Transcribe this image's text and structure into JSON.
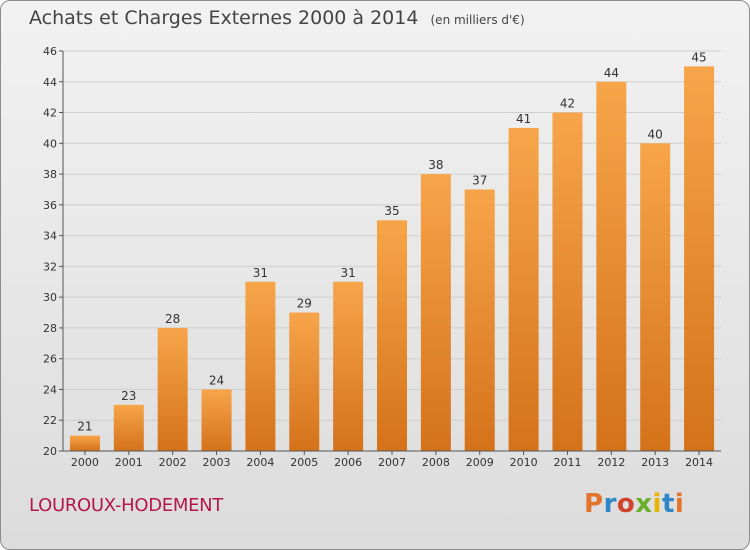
{
  "header": {
    "title": "Achats et Charges Externes 2000 à 2014",
    "subtitle": "(en milliers d'€)"
  },
  "footer": {
    "commune": "LOUROUX-HODEMENT",
    "logo_text": "Proxiti"
  },
  "colors": {
    "bar_light": "#f7a54a",
    "bar_dark": "#d4721a",
    "grid": "#d0d0d0",
    "axis": "#555555",
    "commune": "#b5174d",
    "logo": [
      "#e4732b",
      "#2e85c8",
      "#d1432c",
      "#6aaf2b",
      "#e8b400",
      "#2e85c8",
      "#e4732b"
    ]
  },
  "chart_data": {
    "type": "bar",
    "categories": [
      "2000",
      "2001",
      "2002",
      "2003",
      "2004",
      "2005",
      "2006",
      "2007",
      "2008",
      "2009",
      "2010",
      "2011",
      "2012",
      "2013",
      "2014"
    ],
    "values": [
      21,
      23,
      28,
      24,
      31,
      29,
      31,
      35,
      38,
      37,
      41,
      42,
      44,
      40,
      45
    ],
    "title": "Achats et Charges Externes 2000 à 2014",
    "subtitle": "(en milliers d'€)",
    "xlabel": "",
    "ylabel": "",
    "ylim": [
      20,
      46
    ],
    "yticks": [
      20,
      22,
      24,
      26,
      28,
      30,
      32,
      34,
      36,
      38,
      40,
      42,
      44,
      46
    ],
    "grid": true,
    "legend": "none"
  }
}
